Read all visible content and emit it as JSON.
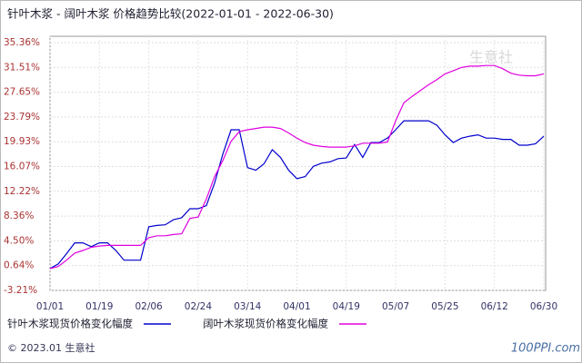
{
  "chart_data": {
    "type": "line",
    "title": "针叶木浆 - 阔叶木浆 价格趋势比较(2022-01-01 - 2022-06-30)",
    "categories": [
      "01/01",
      null,
      null,
      null,
      null,
      null,
      "01/19",
      null,
      null,
      null,
      null,
      null,
      "02/06",
      null,
      null,
      null,
      null,
      null,
      "02/24",
      null,
      null,
      null,
      null,
      null,
      "03/14",
      null,
      null,
      null,
      null,
      null,
      "04/01",
      null,
      null,
      null,
      null,
      null,
      "04/19",
      null,
      null,
      null,
      null,
      null,
      "05/07",
      null,
      null,
      null,
      null,
      null,
      "05/25",
      null,
      null,
      null,
      null,
      null,
      "06/12",
      null,
      null,
      null,
      null,
      null,
      "06/30"
    ],
    "series": [
      {
        "name": "针叶木浆现货价格变化幅度",
        "color": "#0000cc",
        "values": [
          0.2,
          0.9,
          2.5,
          4.2,
          4.2,
          3.6,
          4.2,
          4.2,
          3.0,
          1.5,
          1.5,
          1.5,
          6.7,
          6.9,
          7.0,
          7.8,
          8.1,
          9.5,
          9.5,
          10.0,
          13.5,
          18.0,
          21.8,
          21.8,
          15.9,
          15.5,
          16.5,
          18.7,
          17.5,
          15.5,
          14.2,
          14.5,
          16.1,
          16.6,
          16.8,
          17.3,
          17.4,
          19.5,
          17.5,
          19.8,
          19.8,
          20.5,
          21.8,
          23.2,
          23.2,
          23.2,
          23.2,
          22.5,
          21.0,
          19.8,
          20.5,
          20.8,
          21.0,
          20.5,
          20.5,
          20.3,
          20.3,
          19.4,
          19.4,
          19.6,
          20.8
        ]
      },
      {
        "name": "阔叶木浆现货价格变化幅度",
        "color": "#e000e0",
        "values": [
          0.2,
          0.5,
          1.5,
          2.6,
          3.0,
          3.5,
          3.7,
          3.8,
          3.8,
          3.8,
          3.8,
          3.8,
          5.0,
          5.3,
          5.3,
          5.5,
          5.6,
          8.0,
          8.2,
          11.0,
          14.5,
          17.0,
          20.0,
          21.5,
          21.8,
          22.0,
          22.2,
          22.2,
          22.0,
          21.3,
          20.5,
          19.8,
          19.4,
          19.2,
          19.1,
          19.1,
          19.1,
          19.3,
          19.7,
          19.7,
          19.7,
          19.9,
          23.2,
          26.0,
          27.0,
          27.9,
          28.8,
          29.6,
          30.5,
          31.0,
          31.5,
          31.7,
          31.7,
          31.8,
          31.8,
          31.3,
          30.6,
          30.3,
          30.2,
          30.2,
          30.5
        ]
      }
    ],
    "ylim": [
      -3.21,
      35.36
    ],
    "yticks": [
      {
        "value": -3.21,
        "label": "-3.21%"
      },
      {
        "value": 0.64,
        "label": "0.64%"
      },
      {
        "value": 4.5,
        "label": "4.50%"
      },
      {
        "value": 8.36,
        "label": "8.36%"
      },
      {
        "value": 12.22,
        "label": "12.22%"
      },
      {
        "value": 16.07,
        "label": "16.07%"
      },
      {
        "value": 19.93,
        "label": "19.93%"
      },
      {
        "value": 23.79,
        "label": "23.79%"
      },
      {
        "value": 27.65,
        "label": "27.65%"
      },
      {
        "value": 31.51,
        "label": "31.51%"
      },
      {
        "value": 35.36,
        "label": "35.36%"
      }
    ],
    "grid": true
  },
  "watermark": "生意社",
  "footer": "© 2023.01 生意社",
  "footer_logo": "100PPI.com"
}
